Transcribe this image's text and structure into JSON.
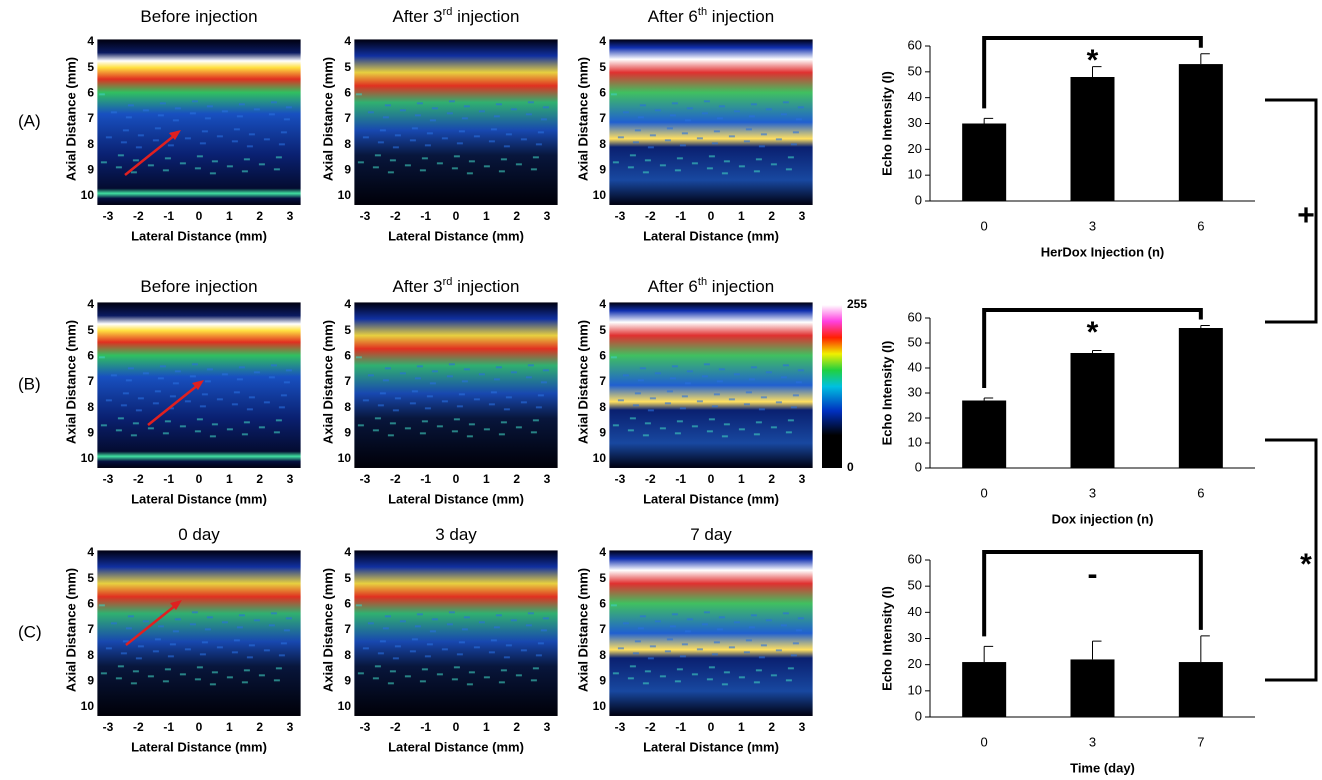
{
  "images": {
    "row_labels": [
      "(A)",
      "(B)",
      "(C)"
    ],
    "titles": [
      [
        [
          "Before injection"
        ],
        [
          "After 3",
          "rd",
          " injection"
        ],
        [
          "After 6",
          "th",
          " injection"
        ]
      ],
      [
        [
          "Before injection"
        ],
        [
          "After 3",
          "rd",
          " injection"
        ],
        [
          "After 6",
          "th",
          " injection"
        ]
      ],
      [
        [
          "0 day"
        ],
        [
          "3 day"
        ],
        [
          "7 day"
        ]
      ]
    ],
    "xlabel": "Lateral Distance (mm)",
    "ylabel": "Axial Distance (mm)",
    "xticks": [
      -3,
      -2,
      -1,
      0,
      1,
      2,
      3
    ],
    "yticks": [
      4,
      5,
      6,
      7,
      8,
      9,
      10
    ],
    "colorbar_ticks": [
      0,
      255
    ]
  },
  "between_chart_labels": [
    "+",
    "*"
  ],
  "chart_data": [
    {
      "type": "bar",
      "ylabel": "Echo Intensity (I)",
      "xlabel": "HerDox Injection (n)",
      "annotation": "*",
      "categories": [
        "0",
        "3",
        "6"
      ],
      "values": [
        30,
        48,
        53
      ],
      "errors": [
        2,
        4,
        4
      ],
      "color": "#000000",
      "ylim": [
        0,
        60
      ],
      "yticks": [
        0,
        10,
        20,
        30,
        40,
        50,
        60
      ]
    },
    {
      "type": "bar",
      "ylabel": "Echo Intensity (I)",
      "xlabel": "Dox injection (n)",
      "annotation": "*",
      "categories": [
        "0",
        "3",
        "6"
      ],
      "values": [
        27,
        46,
        56
      ],
      "errors": [
        1,
        1,
        1
      ],
      "color": "#000000",
      "ylim": [
        0,
        60
      ],
      "yticks": [
        0,
        10,
        20,
        30,
        40,
        50,
        60
      ]
    },
    {
      "type": "bar",
      "ylabel": "Echo Intensity (I)",
      "xlabel": "Time (day)",
      "annotation": "-",
      "categories": [
        "0",
        "3",
        "7"
      ],
      "values": [
        21,
        22,
        21
      ],
      "errors": [
        6,
        7,
        10
      ],
      "color": "#000000",
      "ylim": [
        0,
        60
      ],
      "yticks": [
        0,
        10,
        20,
        30,
        40,
        50,
        60
      ]
    }
  ]
}
